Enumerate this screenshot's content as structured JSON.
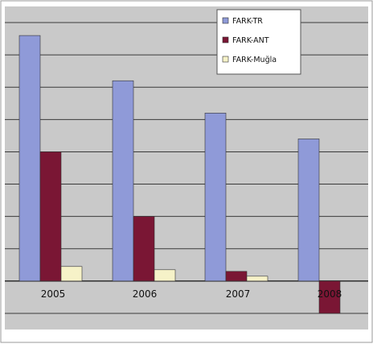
{
  "chart_data": {
    "type": "bar",
    "categories": [
      "2005",
      "2006",
      "2007",
      "2008"
    ],
    "series": [
      {
        "name": "FARK-TR",
        "values": [
          7.6,
          6.2,
          5.2,
          4.4
        ]
      },
      {
        "name": "FARK-ANT",
        "values": [
          4.0,
          2.0,
          0.3,
          -1.0
        ]
      },
      {
        "name": "FARK-Muğla",
        "values": [
          0.45,
          0.35,
          0.15,
          0.0
        ]
      }
    ],
    "ylim": [
      -1.5,
      8.5
    ],
    "grid": true,
    "legend": "top-right",
    "colors": {
      "FARK-TR": "#8f9ad8",
      "FARK-ANT": "#7a1634",
      "FARK-Muğla": "#f6f2c8",
      "plot_background": "#c9c9c9",
      "gridline": "#3a3a3a"
    }
  }
}
